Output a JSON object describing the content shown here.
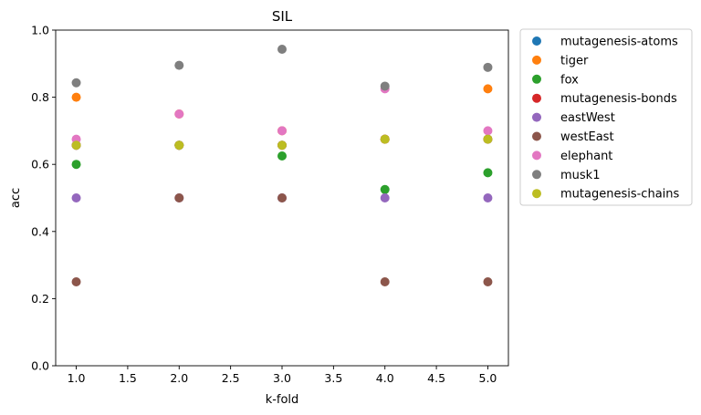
{
  "chart_data": {
    "type": "scatter",
    "title": "SIL",
    "xlabel": "k-fold",
    "ylabel": "acc",
    "xlim": [
      0.8,
      5.2
    ],
    "ylim": [
      0.0,
      1.0
    ],
    "xticks": [
      "1.0",
      "1.5",
      "2.0",
      "2.5",
      "3.0",
      "3.5",
      "4.0",
      "4.5",
      "5.0"
    ],
    "yticks": [
      "0.0",
      "0.2",
      "0.4",
      "0.6",
      "0.8",
      "1.0"
    ],
    "legend_position": "outside-right",
    "grid": false,
    "x": [
      1,
      2,
      3,
      4,
      5
    ],
    "series": [
      {
        "name": "mutagenesis-atoms",
        "color": "#1f77b4",
        "values": [
          0.657,
          0.657,
          0.657,
          0.675,
          0.675
        ]
      },
      {
        "name": "tiger",
        "color": "#ff7f0e",
        "values": [
          0.8,
          0.75,
          0.7,
          0.675,
          0.825
        ]
      },
      {
        "name": "fox",
        "color": "#2ca02c",
        "values": [
          0.6,
          0.657,
          0.625,
          0.525,
          0.575
        ]
      },
      {
        "name": "mutagenesis-bonds",
        "color": "#d62728",
        "values": [
          0.657,
          0.657,
          0.657,
          0.675,
          0.675
        ]
      },
      {
        "name": "eastWest",
        "color": "#9467bd",
        "values": [
          0.5,
          0.5,
          0.5,
          0.5,
          0.5
        ]
      },
      {
        "name": "westEast",
        "color": "#8c564b",
        "values": [
          0.25,
          0.5,
          0.5,
          0.25,
          0.25
        ]
      },
      {
        "name": "elephant",
        "color": "#e377c2",
        "values": [
          0.675,
          0.75,
          0.7,
          0.825,
          0.7
        ]
      },
      {
        "name": "musk1",
        "color": "#7f7f7f",
        "values": [
          0.843,
          0.895,
          0.943,
          0.833,
          0.889
        ]
      },
      {
        "name": "mutagenesis-chains",
        "color": "#bcbd22",
        "values": [
          0.657,
          0.657,
          0.657,
          0.675,
          0.675
        ]
      }
    ]
  }
}
